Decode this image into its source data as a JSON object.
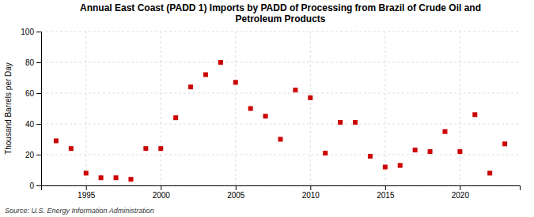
{
  "chart_data": {
    "type": "scatter",
    "title": "Annual East Coast (PADD 1) Imports by PADD of Processing from Brazil of Crude Oil and\nPetroleum Products",
    "ylabel": "Thousand Barrels per Day",
    "source": "Source: U.S. Energy Information Administration",
    "x": [
      1993,
      1994,
      1995,
      1996,
      1997,
      1998,
      1999,
      2000,
      2001,
      2002,
      2003,
      2004,
      2005,
      2006,
      2007,
      2008,
      2009,
      2010,
      2011,
      2012,
      2013,
      2014,
      2015,
      2016,
      2017,
      2018,
      2019,
      2020,
      2021,
      2022,
      2023
    ],
    "values": [
      29,
      24,
      8,
      5,
      5,
      4,
      24,
      24,
      44,
      64,
      72,
      80,
      67,
      50,
      45,
      30,
      62,
      57,
      21,
      41,
      41,
      19,
      12,
      13,
      23,
      22,
      35,
      22,
      46,
      8,
      27
    ],
    "color": "#cc0000",
    "marker": "square",
    "xlim": [
      1992,
      2024
    ],
    "xticks": [
      1995,
      2000,
      2005,
      2010,
      2015,
      2020
    ],
    "ylim": [
      0,
      100
    ],
    "yticks": [
      0,
      20,
      40,
      60,
      80,
      100
    ],
    "grid": true
  }
}
